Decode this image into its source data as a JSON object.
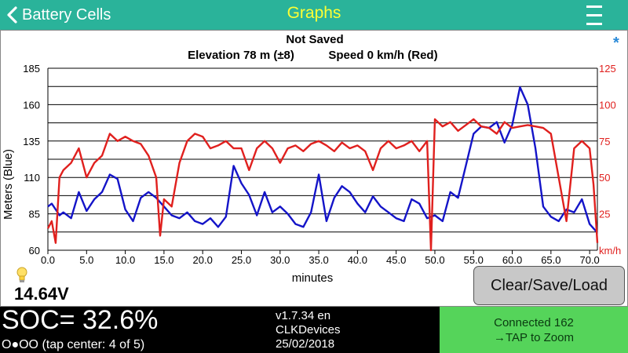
{
  "topbar": {
    "back_label": "Battery Cells",
    "title": "Graphs"
  },
  "chart_header": {
    "status": "Not Saved",
    "elevation": "Elevation 78 m (±8)",
    "speed": "Speed 0 km/h (Red)"
  },
  "chart_data": {
    "type": "line",
    "xlabel": "minutes",
    "ylabel": "Meters  (Blue)",
    "y2label": "km/h",
    "xlim": [
      0,
      71
    ],
    "ylim": [
      60,
      185
    ],
    "y2lim": [
      0,
      125
    ],
    "x_ticks": [
      "0.0",
      "5.0",
      "10.0",
      "15.0",
      "20.0",
      "25.0",
      "30.0",
      "35.0",
      "40.0",
      "45.0",
      "50.0",
      "55.0",
      "60.0",
      "65.0",
      "70.0"
    ],
    "y_ticks": [
      "60",
      "85",
      "110",
      "135",
      "160",
      "185"
    ],
    "y2_ticks": [
      "25",
      "50",
      "75",
      "100",
      "125"
    ],
    "colors": {
      "elevation": "#1414c8",
      "speed": "#e0201e",
      "grid": "#000000"
    },
    "series": [
      {
        "axis": "left",
        "x": [
          0,
          0.5,
          1,
          1.5,
          2,
          3,
          4,
          5,
          6,
          7,
          8,
          9,
          10,
          11,
          12,
          13,
          14,
          15,
          16,
          17,
          18,
          19,
          20,
          21,
          22,
          23,
          24,
          25,
          26,
          27,
          28,
          29,
          30,
          31,
          32,
          33,
          34,
          35,
          36,
          37,
          38,
          39,
          40,
          41,
          42,
          43,
          44,
          45,
          46,
          47,
          48,
          49,
          50,
          51,
          52,
          53,
          54,
          55,
          56,
          57,
          58,
          59,
          60,
          61,
          62,
          63,
          64,
          65,
          66,
          67,
          68,
          69,
          70,
          71
        ],
        "values": [
          90,
          92,
          88,
          84,
          86,
          82,
          100,
          87,
          95,
          100,
          112,
          109,
          88,
          80,
          96,
          100,
          96,
          90,
          84,
          82,
          86,
          80,
          78,
          82,
          76,
          83,
          118,
          106,
          98,
          84,
          100,
          86,
          90,
          85,
          78,
          76,
          86,
          112,
          80,
          96,
          104,
          100,
          92,
          86,
          97,
          90,
          86,
          82,
          80,
          95,
          92,
          82,
          84,
          80,
          100,
          96,
          118,
          140,
          145,
          144,
          148,
          134,
          146,
          172,
          160,
          130,
          90,
          83,
          80,
          88,
          86,
          95,
          78,
          72
        ]
      },
      {
        "axis": "right",
        "x": [
          0,
          0.5,
          1,
          1.5,
          2,
          3,
          4,
          5,
          6,
          7,
          8,
          9,
          10,
          11,
          12,
          13,
          14,
          14.5,
          15,
          16,
          17,
          18,
          19,
          20,
          21,
          22,
          23,
          24,
          25,
          26,
          27,
          28,
          29,
          30,
          31,
          32,
          33,
          34,
          35,
          36,
          37,
          38,
          39,
          40,
          41,
          42,
          43,
          44,
          45,
          46,
          47,
          48,
          49,
          49.5,
          50,
          51,
          52,
          53,
          54,
          55,
          56,
          57,
          58,
          59,
          60,
          61,
          62,
          63,
          64,
          65,
          66,
          67,
          68,
          69,
          70,
          70.5,
          71
        ],
        "values": [
          15,
          20,
          5,
          50,
          55,
          60,
          70,
          50,
          60,
          65,
          80,
          75,
          78,
          75,
          73,
          65,
          50,
          10,
          35,
          30,
          60,
          75,
          80,
          78,
          70,
          72,
          75,
          70,
          70,
          55,
          70,
          75,
          70,
          60,
          70,
          72,
          68,
          73,
          75,
          72,
          68,
          74,
          70,
          72,
          68,
          55,
          70,
          75,
          70,
          72,
          75,
          68,
          75,
          0,
          90,
          85,
          88,
          82,
          86,
          90,
          85,
          84,
          80,
          88,
          84,
          85,
          86,
          85,
          84,
          80,
          50,
          20,
          70,
          75,
          70,
          45,
          5
        ]
      }
    ]
  },
  "status": {
    "voltage": "14.64V",
    "button_label": "Clear/Save/Load",
    "soc": "SOC= 32.6%",
    "dots": "O●OO (tap center: 4 of 5)",
    "version": "v1.7.34 en",
    "company": "CLKDevices",
    "date": "25/02/2018",
    "connected": "Connected 162",
    "zoom": "→TAP to Zoom"
  }
}
